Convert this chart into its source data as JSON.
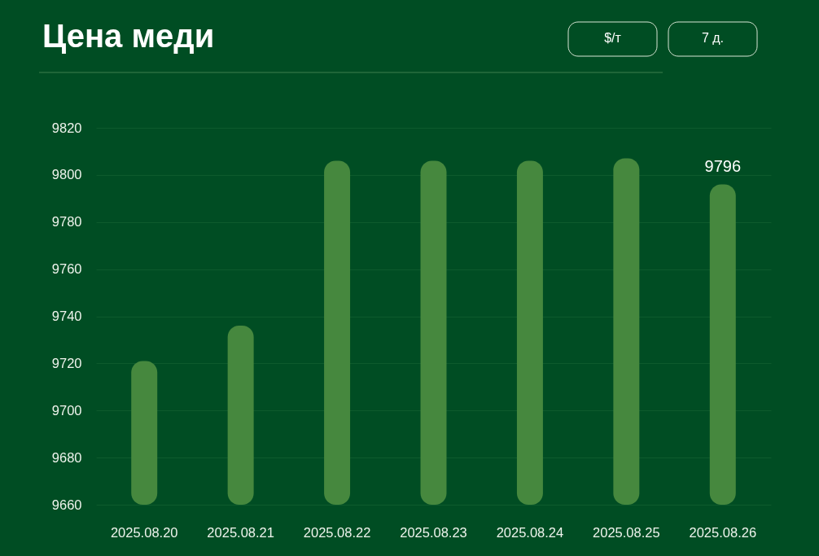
{
  "chart_data": {
    "type": "bar",
    "title": "Цена меди",
    "categories": [
      "2025.08.20",
      "2025.08.21",
      "2025.08.22",
      "2025.08.23",
      "2025.08.24",
      "2025.08.25",
      "2025.08.26"
    ],
    "values": [
      9721,
      9736,
      9806,
      9806,
      9806,
      9807,
      9796
    ],
    "color": "#46883e",
    "value_labels": [
      null,
      null,
      null,
      null,
      null,
      null,
      "9796"
    ],
    "ylim": [
      9660,
      9820
    ],
    "yticks": [
      9660,
      9680,
      9700,
      9720,
      9740,
      9760,
      9780,
      9800,
      9820
    ],
    "grid": "y",
    "annotations": [
      "$/т",
      "7 д."
    ]
  }
}
